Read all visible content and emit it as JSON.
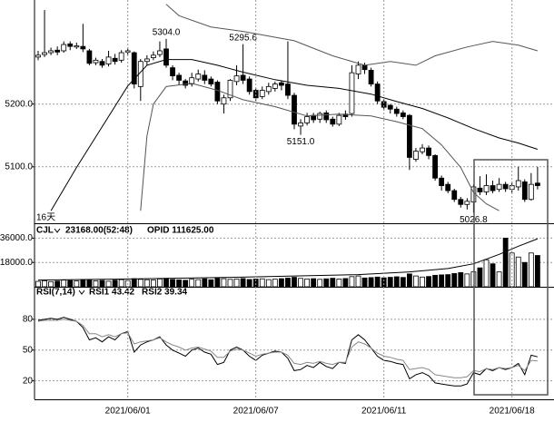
{
  "period_label": "16天",
  "chart_data": [
    {
      "type": "candlestick",
      "open": [
        5275,
        5279,
        5282,
        5286,
        5285,
        5296,
        5291,
        5292,
        5285,
        5266,
        5268,
        5264,
        5273,
        5270,
        5283,
        5282,
        5228,
        5268,
        5274,
        5279,
        5288,
        5258,
        5246,
        5237,
        5232,
        5240,
        5246,
        5240,
        5235,
        5200,
        5210,
        5236,
        5246,
        5240,
        5222,
        5212,
        5220,
        5225,
        5234,
        5232,
        5214,
        5165,
        5170,
        5182,
        5176,
        5186,
        5176,
        5168,
        5184,
        5185,
        5248,
        5262,
        5254,
        5232,
        5204,
        5198,
        5192,
        5186,
        5182,
        5112,
        5124,
        5130,
        5118,
        5082,
        5072,
        5062,
        5048,
        5040,
        5044,
        5066,
        5060,
        5070,
        5064,
        5072,
        5064,
        5068,
        5076,
        5048,
        5074
      ],
      "high": [
        5285,
        5350,
        5290,
        5292,
        5300,
        5300,
        5298,
        5328,
        5288,
        5274,
        5272,
        5285,
        5280,
        5286,
        5290,
        5284,
        5272,
        5278,
        5284,
        5300,
        5304,
        5262,
        5250,
        5240,
        5250,
        5255,
        5254,
        5244,
        5238,
        5215,
        5240,
        5262,
        5295.6,
        5244,
        5226,
        5228,
        5234,
        5236,
        5238,
        5300,
        5218,
        5176,
        5186,
        5186,
        5188,
        5190,
        5180,
        5186,
        5190,
        5262,
        5268,
        5266,
        5258,
        5236,
        5208,
        5200,
        5196,
        5190,
        5184,
        5130,
        5136,
        5134,
        5120,
        5086,
        5076,
        5065,
        5052,
        5050,
        5072,
        5085,
        5088,
        5078,
        5082,
        5076,
        5076,
        5100,
        5080,
        5090,
        5100
      ],
      "low": [
        5270,
        5275,
        5278,
        5278,
        5282,
        5286,
        5288,
        5283,
        5262,
        5262,
        5258,
        5260,
        5263,
        5266,
        5278,
        5225,
        5205,
        5262,
        5270,
        5275,
        5258,
        5238,
        5230,
        5225,
        5228,
        5236,
        5232,
        5228,
        5200,
        5185,
        5205,
        5230,
        5232,
        5215,
        5205,
        5208,
        5215,
        5220,
        5222,
        5208,
        5160,
        5151,
        5166,
        5170,
        5170,
        5170,
        5164,
        5165,
        5175,
        5180,
        5240,
        5248,
        5228,
        5200,
        5190,
        5185,
        5180,
        5176,
        5095,
        5108,
        5120,
        5112,
        5078,
        5062,
        5058,
        5044,
        5035,
        5032,
        5026.8,
        5055,
        5055,
        5058,
        5060,
        5060,
        5058,
        5062,
        5044,
        5046,
        5064
      ],
      "close": [
        5278,
        5282,
        5285,
        5283,
        5295,
        5292,
        5293,
        5288,
        5265,
        5270,
        5262,
        5275,
        5268,
        5282,
        5285,
        5232,
        5268,
        5272,
        5278,
        5285,
        5262,
        5245,
        5238,
        5230,
        5242,
        5248,
        5238,
        5232,
        5205,
        5210,
        5238,
        5245,
        5238,
        5220,
        5210,
        5222,
        5228,
        5232,
        5230,
        5214,
        5168,
        5170,
        5180,
        5175,
        5185,
        5175,
        5168,
        5182,
        5180,
        5250,
        5262,
        5255,
        5232,
        5205,
        5195,
        5192,
        5185,
        5180,
        5115,
        5125,
        5130,
        5118,
        5082,
        5070,
        5062,
        5048,
        5040,
        5045,
        5068,
        5060,
        5070,
        5062,
        5072,
        5065,
        5070,
        5078,
        5048,
        5072,
        5070
      ],
      "up_color": "#ffffff",
      "down_color": "#000000",
      "lines": [
        {
          "color": "#555555",
          "x": [
            20,
            22,
            27,
            32,
            40,
            46,
            51,
            55,
            59,
            62,
            67,
            71,
            75,
            78
          ],
          "values": [
            5359,
            5341,
            5323,
            5316,
            5301,
            5277,
            5262,
            5268,
            5262,
            5277,
            5291,
            5300,
            5294,
            5285
          ]
        },
        {
          "color": "#000000",
          "x": [
            2,
            6,
            10,
            14,
            17,
            20,
            24,
            28,
            32,
            37,
            42,
            47,
            52,
            56,
            60,
            64,
            68,
            72,
            75,
            78
          ],
          "values": [
            5030,
            5099,
            5164,
            5229,
            5262,
            5271,
            5271,
            5262,
            5251,
            5239,
            5230,
            5225,
            5216,
            5204,
            5193,
            5178,
            5161,
            5146,
            5138,
            5128
          ]
        },
        {
          "color": "#555555",
          "x": [
            16,
            17,
            18,
            20,
            24,
            28,
            32,
            37,
            42,
            47,
            52,
            56,
            60,
            63,
            66,
            68,
            70,
            72
          ],
          "values": [
            5030,
            5149,
            5200,
            5228,
            5233,
            5222,
            5207,
            5196,
            5181,
            5184,
            5181,
            5172,
            5161,
            5135,
            5099,
            5059,
            5041,
            5030
          ]
        }
      ],
      "annotations": [
        {
          "x": 20,
          "value": 5304,
          "label": "5304.0"
        },
        {
          "x": 32,
          "value": 5295.6,
          "label": "5295.6"
        },
        {
          "x": 41,
          "value": 5151,
          "label": "5151.0"
        },
        {
          "x": 68,
          "value": 5026.8,
          "label": "5026.8"
        }
      ],
      "ylim": [
        5010,
        5366
      ],
      "yticks": [
        {
          "value": 5100,
          "label": "5100.0"
        },
        {
          "value": 5200,
          "label": "5200.0"
        }
      ],
      "grid": true
    },
    {
      "type": "bar",
      "indicator": "CJL",
      "readout": "23168.00(52:48)",
      "opid_readout": "OPID 111625.00",
      "values": [
        4000,
        4500,
        3800,
        4200,
        5000,
        4600,
        4300,
        5200,
        4800,
        4400,
        4700,
        4100,
        4900,
        5300,
        4600,
        6000,
        5500,
        5200,
        5000,
        5800,
        6200,
        5400,
        5100,
        4800,
        5600,
        5300,
        5900,
        5200,
        6300,
        6000,
        5500,
        5800,
        6100,
        5400,
        5700,
        5900,
        5300,
        5600,
        6000,
        6400,
        7000,
        6200,
        5800,
        6000,
        5500,
        5900,
        6300,
        5700,
        6100,
        7500,
        8000,
        6500,
        6800,
        7200,
        6600,
        7000,
        7400,
        6900,
        9500,
        8000,
        7200,
        7600,
        8500,
        8800,
        9000,
        9800,
        10500,
        9500,
        11000,
        14000,
        20000,
        17000,
        11000,
        36000,
        25000,
        22000,
        18000,
        25000,
        23168
      ],
      "line": {
        "color": "#000000",
        "x": [
          0,
          10,
          20,
          30,
          40,
          50,
          58,
          64,
          68,
          72,
          75,
          78
        ],
        "values": [
          5000,
          5500,
          6200,
          7000,
          8000,
          9000,
          11000,
          13500,
          17000,
          24000,
          30000,
          35500
        ]
      },
      "ylim": [
        0,
        45000
      ],
      "yticks": [
        {
          "value": 18000,
          "label": "18000.0"
        },
        {
          "value": 36000,
          "label": "36000.0"
        }
      ],
      "grid": true
    },
    {
      "type": "line",
      "indicator": "RSI(7,14)",
      "categories": [
        null,
        null,
        null,
        null,
        null,
        null,
        null,
        null,
        null,
        null,
        null,
        null,
        null,
        null,
        "2021/06/01",
        null,
        null,
        null,
        null,
        null,
        null,
        null,
        null,
        null,
        null,
        null,
        null,
        null,
        null,
        null,
        null,
        null,
        null,
        null,
        "2021/06/07",
        null,
        null,
        null,
        null,
        null,
        null,
        null,
        null,
        null,
        null,
        null,
        null,
        null,
        null,
        null,
        null,
        null,
        null,
        null,
        "2021/06/11",
        null,
        null,
        null,
        null,
        null,
        null,
        null,
        null,
        null,
        null,
        null,
        null,
        null,
        null,
        null,
        null,
        null,
        null,
        null,
        "2021/06/18",
        null,
        null,
        null,
        null
      ],
      "series": [
        {
          "name": "RSI1 43.42",
          "color": "#000000",
          "values": [
            79,
            80,
            81,
            80,
            82,
            80,
            78,
            72,
            60,
            62,
            58,
            63,
            60,
            66,
            68,
            48,
            55,
            58,
            60,
            63,
            55,
            50,
            47,
            44,
            50,
            52,
            48,
            46,
            36,
            38,
            50,
            53,
            50,
            44,
            40,
            45,
            47,
            49,
            48,
            42,
            30,
            31,
            35,
            33,
            38,
            34,
            32,
            38,
            37,
            60,
            65,
            60,
            52,
            44,
            40,
            39,
            37,
            36,
            22,
            26,
            28,
            25,
            18,
            17,
            16,
            15,
            15,
            17,
            28,
            26,
            32,
            30,
            33,
            31,
            33,
            37,
            26,
            45,
            43.42
          ]
        },
        {
          "name": "RSI2 39.34",
          "color": "#888888",
          "values": [
            78,
            79,
            79,
            79,
            80,
            79,
            78,
            74,
            66,
            66,
            63,
            65,
            63,
            66,
            67,
            56,
            58,
            59,
            60,
            62,
            58,
            55,
            53,
            50,
            52,
            53,
            51,
            49,
            43,
            43,
            49,
            51,
            50,
            47,
            44,
            46,
            47,
            48,
            48,
            45,
            37,
            36,
            38,
            37,
            39,
            37,
            36,
            38,
            38,
            53,
            58,
            56,
            52,
            47,
            44,
            43,
            41,
            40,
            31,
            32,
            33,
            31,
            26,
            25,
            24,
            23,
            23,
            24,
            30,
            29,
            32,
            31,
            33,
            32,
            33,
            35,
            30,
            40,
            39.34
          ]
        }
      ],
      "ylim": [
        2,
        102
      ],
      "yticks": [
        20,
        50,
        80
      ],
      "grid": true
    }
  ]
}
